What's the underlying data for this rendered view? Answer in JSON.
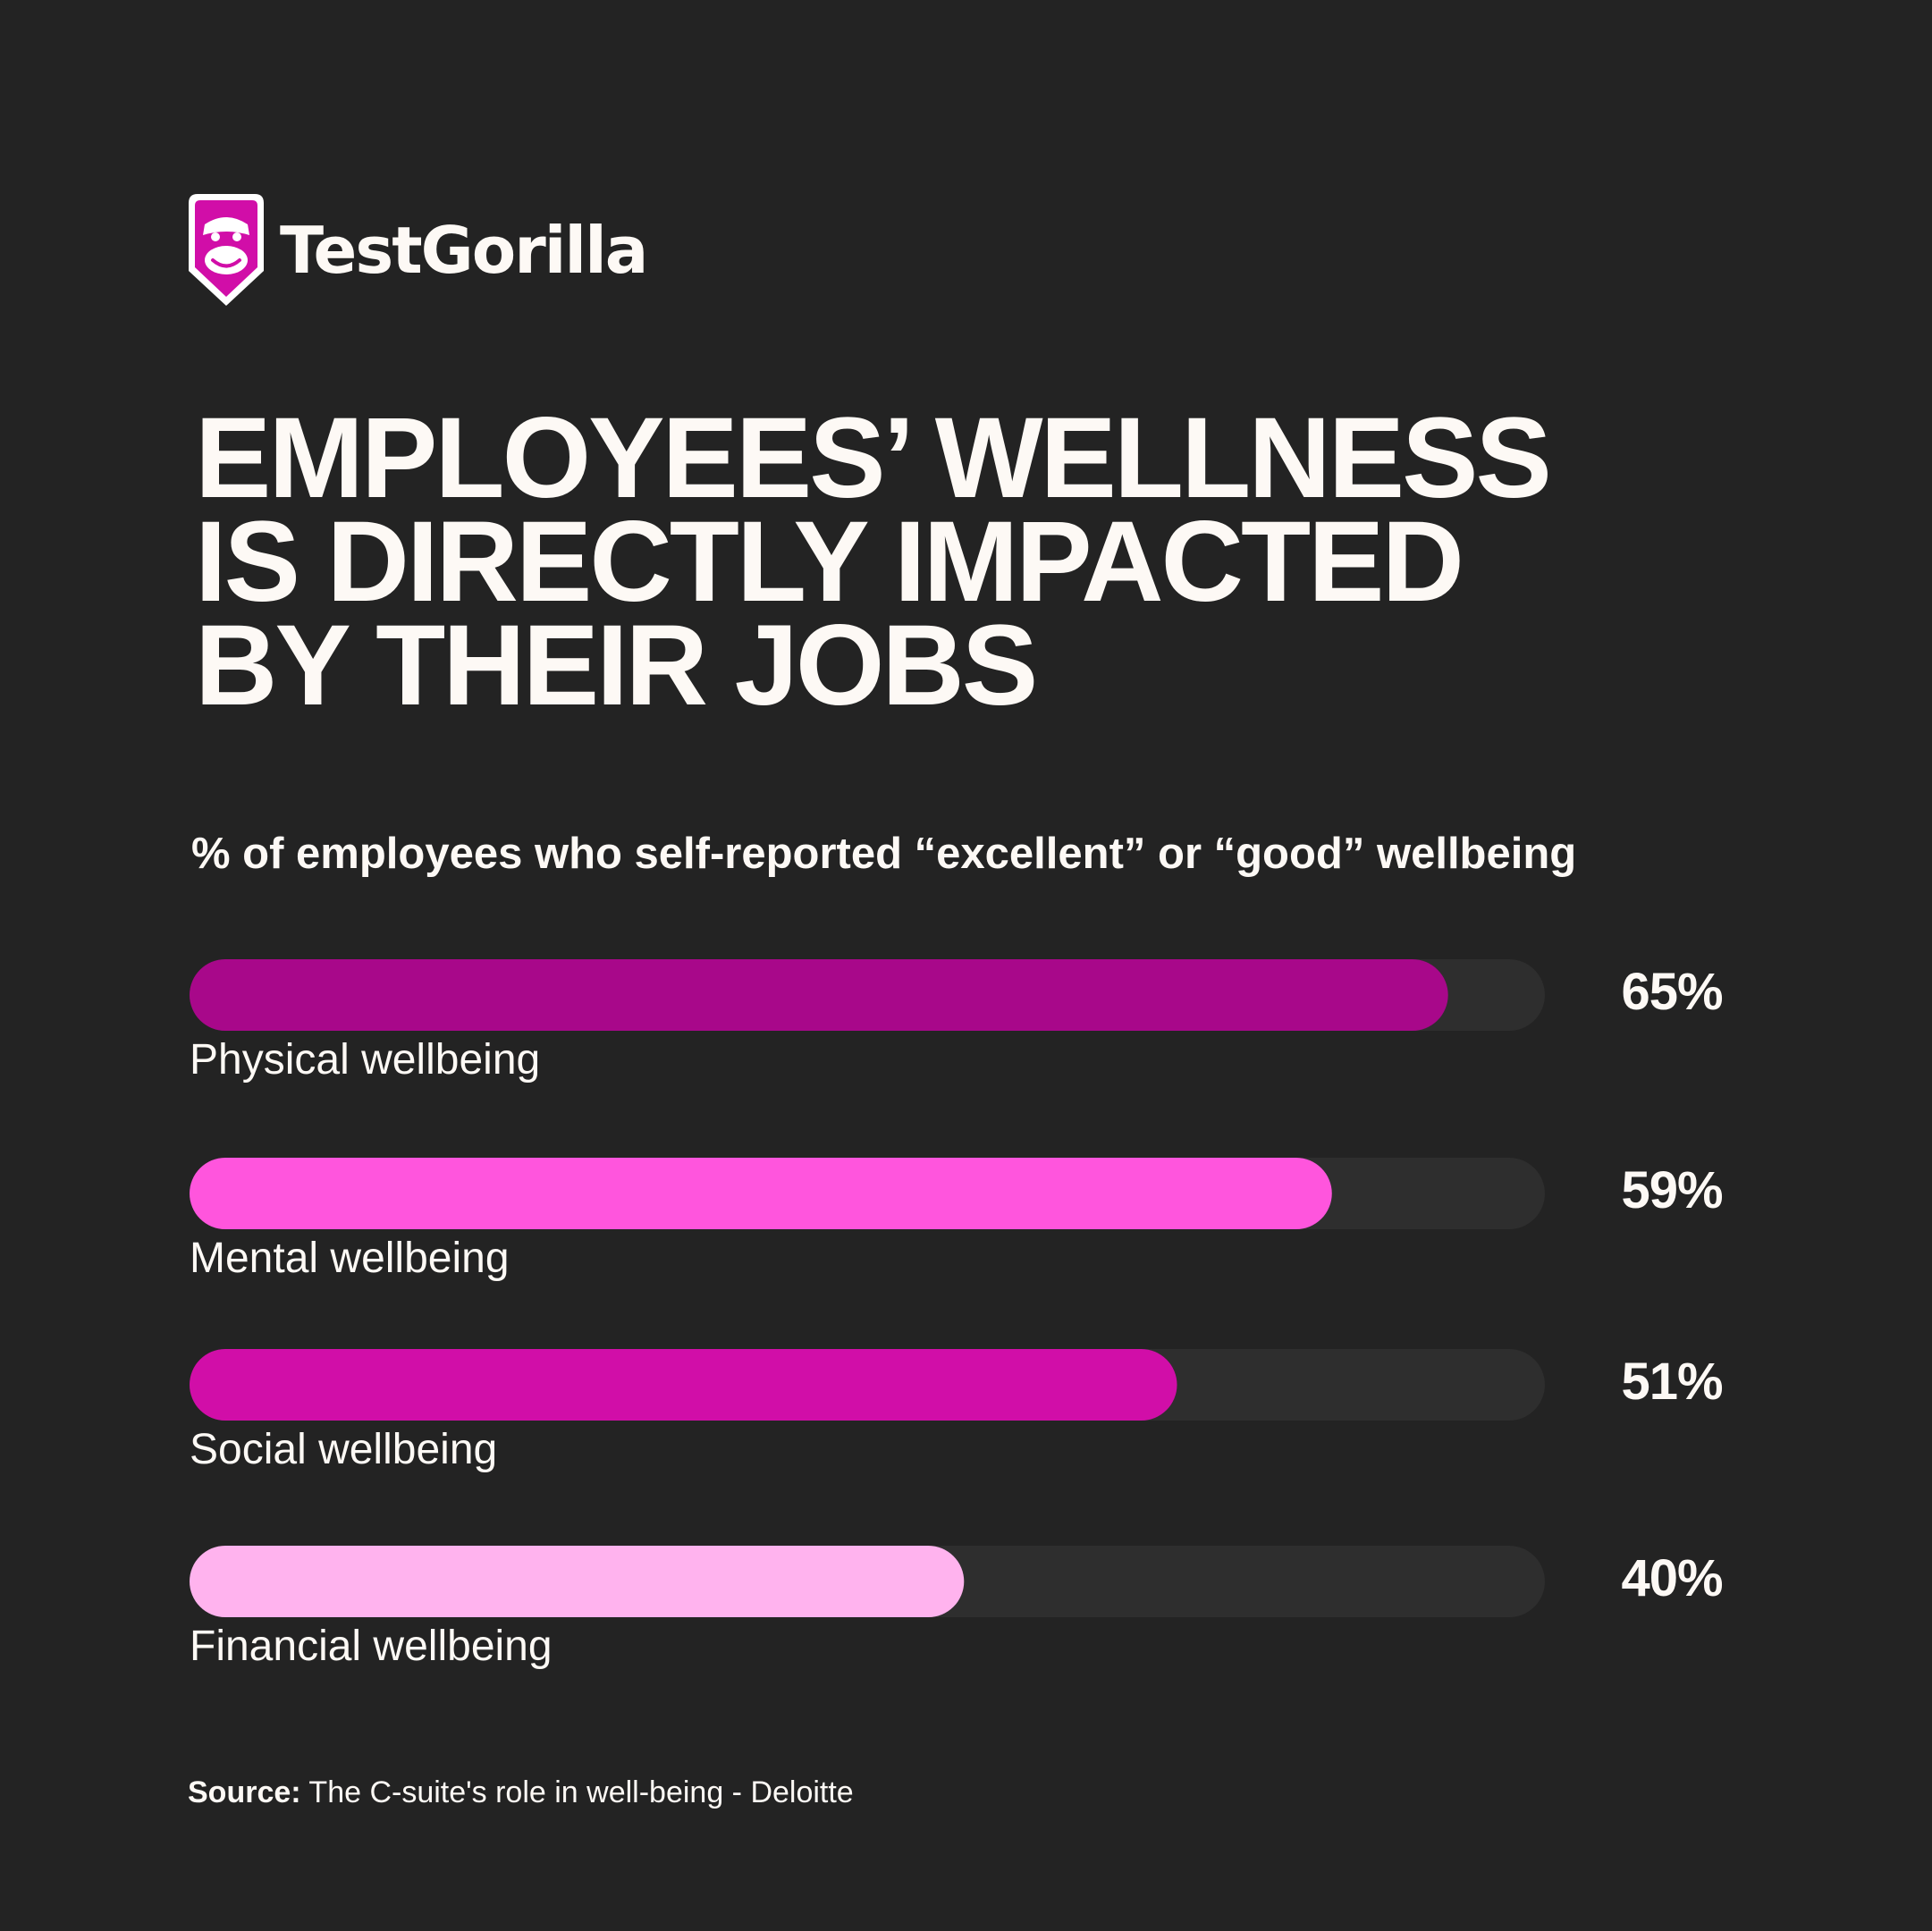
{
  "brand": {
    "name": "TestGorilla",
    "logo_icon": "gorilla-badge-icon",
    "accent": "#d10ea8"
  },
  "headline": {
    "line1": "EMPLOYEES’ WELLNESS",
    "line2": "IS DIRECTLY IMPACTED",
    "line3": "BY THEIR JOBS"
  },
  "chart_data": {
    "type": "bar",
    "orientation": "horizontal",
    "title": "% of employees who self-reported “excellent” or “good” wellbeing",
    "categories": [
      "Physical wellbeing",
      "Mental wellbeing",
      "Social wellbeing",
      "Financial wellbeing"
    ],
    "values": [
      65,
      59,
      51,
      40
    ],
    "value_labels": [
      "65%",
      "59%",
      "51%",
      "40%"
    ],
    "colors": [
      "#a8088a",
      "#ff55dd",
      "#d10ea8",
      "#ffb3ee"
    ],
    "track_color": "#2e2e2e",
    "xlim": [
      0,
      70
    ],
    "grid": false,
    "legend": "none"
  },
  "source": {
    "key": "Source:",
    "text": " The C-suite's role in well-being - Deloitte"
  },
  "background": "#232323",
  "text_color": "#fdf9f5"
}
